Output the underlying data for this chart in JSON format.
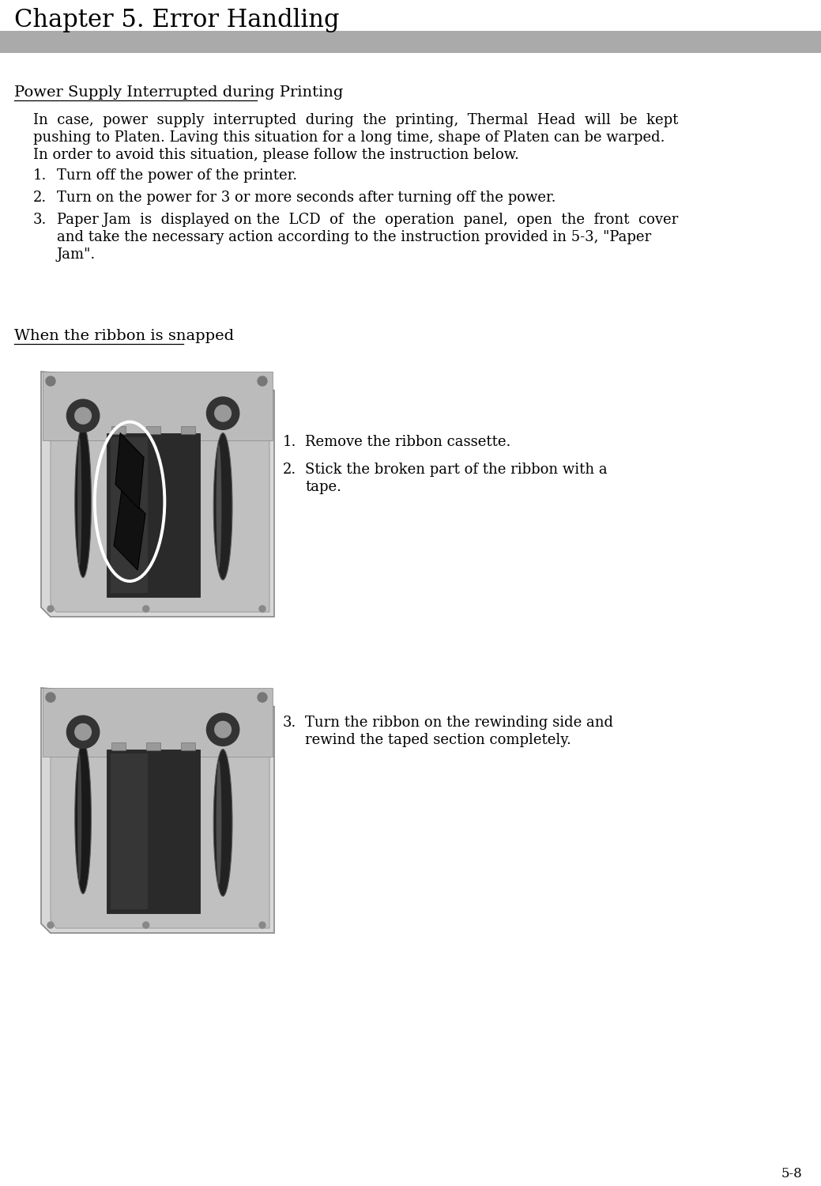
{
  "title": "Chapter 5. Error Handling",
  "bg_color": "#ffffff",
  "text_color": "#000000",
  "header_bar_color": "#aaaaaa",
  "page_number": "5-8",
  "section1_title": "Power Supply Interrupted during Printing",
  "section2_title": "When the ribbon is snapped",
  "font_family": "serif",
  "title_fontsize": 22,
  "section_title_fontsize": 14,
  "body_fontsize": 13,
  "item1_1": "Turn off the power of the printer.",
  "item1_2": "Turn on the power for 3 or more seconds after turning off the power.",
  "item1_3a": "Paper Jam  is  displayed on the  LCD  of  the  operation  panel,  open  the  front  cover",
  "item1_3b": "and take the necessary action according to the instruction provided in 5‑3, \"Paper",
  "item1_3c": "Jam\".",
  "para1a": "In  case,  power  supply  interrupted  during  the  printing,  Thermal  Head  will  be  kept",
  "para1b": "pushing to Platen. Laving this situation for a long time, shape of Platen can be warped.",
  "para1c": "In order to avoid this situation, please follow the instruction below.",
  "item2_1": "Remove the ribbon cassette.",
  "item2_2a": "Stick the broken part of the ribbon with a",
  "item2_2b": "tape.",
  "item2_3a": "Turn the ribbon on the rewinding side and",
  "item2_3b": "rewind the taped section completely."
}
